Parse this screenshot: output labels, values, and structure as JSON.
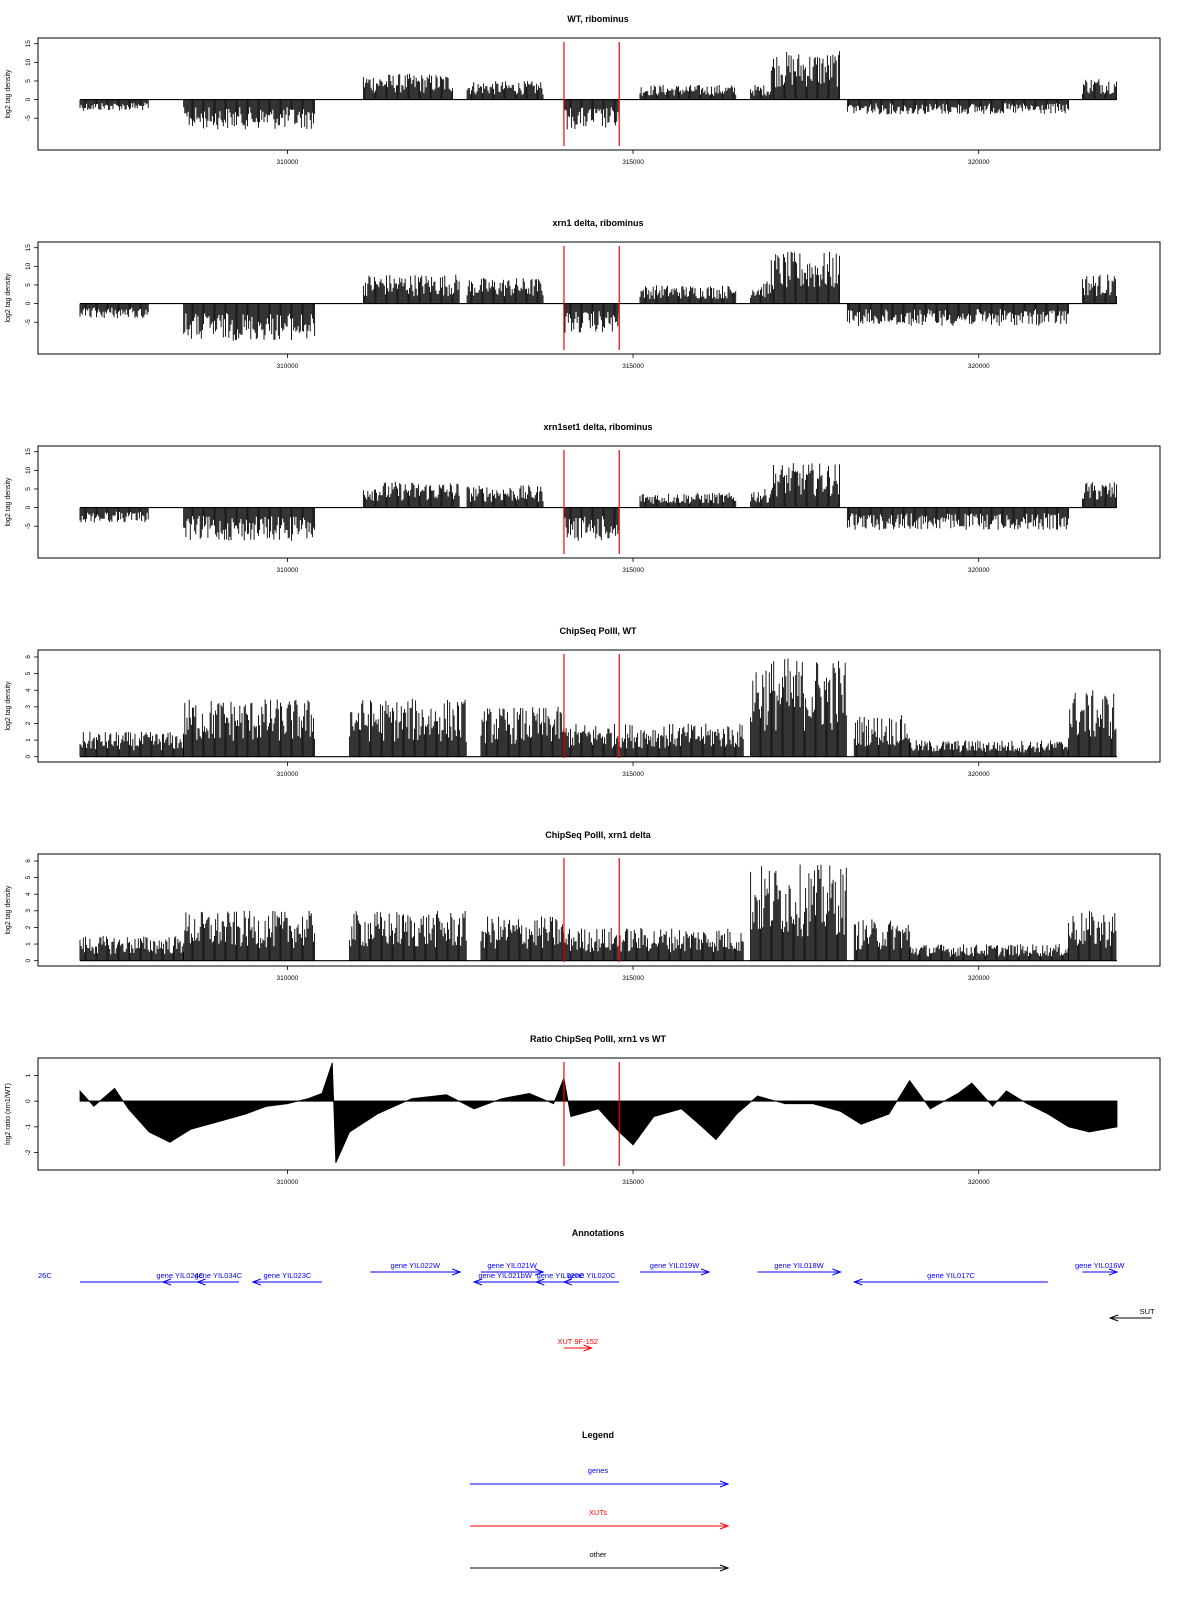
{
  "colors": {
    "genes": "#0000ff",
    "xuts": "#ff0000",
    "other": "#000000",
    "marker": "#ff0000",
    "bars": "#000000"
  },
  "chart_data": [
    {
      "type": "bar",
      "title": "WT, ribominus",
      "ylabel": "log2 tag density",
      "xlim": [
        307000,
        322000
      ],
      "ylim": [
        -13,
        16
      ],
      "xticks": [
        310000,
        315000,
        320000
      ],
      "yticks": [
        -5,
        0,
        5,
        10,
        15
      ],
      "markers_x": [
        314000,
        314800
      ],
      "segments": [
        {
          "from": 307000,
          "to": 308000,
          "amp": 3,
          "sign": -1
        },
        {
          "from": 308500,
          "to": 310400,
          "amp": 8,
          "sign": -1
        },
        {
          "from": 311100,
          "to": 312400,
          "amp": 7,
          "sign": 1
        },
        {
          "from": 312600,
          "to": 313700,
          "amp": 5,
          "sign": 1
        },
        {
          "from": 314000,
          "to": 314800,
          "amp": 8,
          "sign": -1
        },
        {
          "from": 315100,
          "to": 316500,
          "amp": 4,
          "sign": 1
        },
        {
          "from": 316700,
          "to": 317000,
          "amp": 4,
          "sign": 1
        },
        {
          "from": 317000,
          "to": 318000,
          "amp": 13,
          "sign": 1
        },
        {
          "from": 318100,
          "to": 321300,
          "amp": 4,
          "sign": -1
        },
        {
          "from": 321500,
          "to": 322000,
          "amp": 6,
          "sign": 1
        }
      ]
    },
    {
      "type": "bar",
      "title": "xrn1 delta, ribominus",
      "ylabel": "log2 tag density",
      "xlim": [
        307000,
        322000
      ],
      "ylim": [
        -13,
        16
      ],
      "xticks": [
        310000,
        315000,
        320000
      ],
      "yticks": [
        -5,
        0,
        5,
        10,
        15
      ],
      "markers_x": [
        314000,
        314800
      ],
      "segments": [
        {
          "from": 307000,
          "to": 308000,
          "amp": 4,
          "sign": -1
        },
        {
          "from": 308500,
          "to": 310400,
          "amp": 10,
          "sign": -1
        },
        {
          "from": 311100,
          "to": 312500,
          "amp": 8,
          "sign": 1
        },
        {
          "from": 312600,
          "to": 313700,
          "amp": 7,
          "sign": 1
        },
        {
          "from": 314000,
          "to": 314800,
          "amp": 8,
          "sign": -1
        },
        {
          "from": 315100,
          "to": 316500,
          "amp": 5,
          "sign": 1
        },
        {
          "from": 316700,
          "to": 317000,
          "amp": 6,
          "sign": 1
        },
        {
          "from": 317000,
          "to": 318000,
          "amp": 14,
          "sign": 1
        },
        {
          "from": 318100,
          "to": 321300,
          "amp": 6,
          "sign": -1
        },
        {
          "from": 321500,
          "to": 322000,
          "amp": 8,
          "sign": 1
        }
      ]
    },
    {
      "type": "bar",
      "title": "xrn1set1 delta, ribominus",
      "ylabel": "log2 tag density",
      "xlim": [
        307000,
        322000
      ],
      "ylim": [
        -13,
        16
      ],
      "xticks": [
        310000,
        315000,
        320000
      ],
      "yticks": [
        -5,
        0,
        5,
        10,
        15
      ],
      "markers_x": [
        314000,
        314800
      ],
      "segments": [
        {
          "from": 307000,
          "to": 308000,
          "amp": 4,
          "sign": -1
        },
        {
          "from": 308500,
          "to": 310400,
          "amp": 9,
          "sign": -1
        },
        {
          "from": 311100,
          "to": 312500,
          "amp": 7,
          "sign": 1
        },
        {
          "from": 312600,
          "to": 313700,
          "amp": 6,
          "sign": 1
        },
        {
          "from": 314000,
          "to": 314800,
          "amp": 9,
          "sign": -1
        },
        {
          "from": 315100,
          "to": 316500,
          "amp": 4,
          "sign": 1
        },
        {
          "from": 316700,
          "to": 317000,
          "amp": 5,
          "sign": 1
        },
        {
          "from": 317000,
          "to": 318000,
          "amp": 12,
          "sign": 1
        },
        {
          "from": 318100,
          "to": 321300,
          "amp": 6,
          "sign": -1
        },
        {
          "from": 321500,
          "to": 322000,
          "amp": 7,
          "sign": 1
        }
      ]
    },
    {
      "type": "bar",
      "title": "ChipSeq PolII, WT",
      "ylabel": "log2 tag density",
      "xlim": [
        307000,
        322000
      ],
      "ylim": [
        -0.2,
        6.3
      ],
      "xticks": [
        310000,
        315000,
        320000
      ],
      "yticks": [
        0,
        1,
        2,
        3,
        4,
        5,
        6
      ],
      "markers_x": [
        314000,
        314800
      ],
      "segments": [
        {
          "from": 307000,
          "to": 308500,
          "amp": 1.5,
          "sign": 1
        },
        {
          "from": 308500,
          "to": 310400,
          "amp": 3.5,
          "sign": 1
        },
        {
          "from": 310900,
          "to": 312600,
          "amp": 3.5,
          "sign": 1
        },
        {
          "from": 312800,
          "to": 314000,
          "amp": 3,
          "sign": 1
        },
        {
          "from": 314000,
          "to": 316600,
          "amp": 2,
          "sign": 1
        },
        {
          "from": 316700,
          "to": 318100,
          "amp": 6,
          "sign": 1
        },
        {
          "from": 318200,
          "to": 319000,
          "amp": 2.5,
          "sign": 1
        },
        {
          "from": 319000,
          "to": 321300,
          "amp": 1,
          "sign": 1
        },
        {
          "from": 321300,
          "to": 322000,
          "amp": 4,
          "sign": 1
        }
      ]
    },
    {
      "type": "bar",
      "title": "ChipSeq PolII, xrn1 delta",
      "ylabel": "log2 tag density",
      "xlim": [
        307000,
        322000
      ],
      "ylim": [
        -0.2,
        6.3
      ],
      "xticks": [
        310000,
        315000,
        320000
      ],
      "yticks": [
        0,
        1,
        2,
        3,
        4,
        5,
        6
      ],
      "markers_x": [
        314000,
        314800
      ],
      "segments": [
        {
          "from": 307000,
          "to": 308500,
          "amp": 1.5,
          "sign": 1
        },
        {
          "from": 308500,
          "to": 310400,
          "amp": 3,
          "sign": 1
        },
        {
          "from": 310900,
          "to": 312600,
          "amp": 3,
          "sign": 1
        },
        {
          "from": 312800,
          "to": 314000,
          "amp": 2.7,
          "sign": 1
        },
        {
          "from": 314000,
          "to": 316600,
          "amp": 2,
          "sign": 1
        },
        {
          "from": 316700,
          "to": 318100,
          "amp": 5.8,
          "sign": 1
        },
        {
          "from": 318200,
          "to": 319000,
          "amp": 2.5,
          "sign": 1
        },
        {
          "from": 319000,
          "to": 321300,
          "amp": 1,
          "sign": 1
        },
        {
          "from": 321300,
          "to": 322000,
          "amp": 3,
          "sign": 1
        }
      ]
    },
    {
      "type": "area",
      "title": "Ratio ChipSeq PolII, xrn1 vs WT",
      "ylabel": "log2 ratio (xrn1/WT)",
      "xlim": [
        307000,
        322000
      ],
      "ylim": [
        -2.6,
        1.6
      ],
      "xticks": [
        310000,
        315000,
        320000
      ],
      "yticks": [
        -2,
        -1,
        0,
        1
      ],
      "markers_x": [
        314000,
        314800
      ],
      "profile": [
        [
          307000,
          0.4
        ],
        [
          307200,
          -0.2
        ],
        [
          307500,
          0.5
        ],
        [
          307700,
          -0.3
        ],
        [
          308000,
          -1.2
        ],
        [
          308300,
          -1.6
        ],
        [
          308600,
          -1.1
        ],
        [
          309000,
          -0.8
        ],
        [
          309400,
          -0.5
        ],
        [
          309700,
          -0.2
        ],
        [
          310000,
          -0.1
        ],
        [
          310300,
          0.1
        ],
        [
          310500,
          0.3
        ],
        [
          310650,
          1.5
        ],
        [
          310700,
          -2.4
        ],
        [
          310900,
          -1.2
        ],
        [
          311300,
          -0.5
        ],
        [
          311800,
          0.1
        ],
        [
          312300,
          0.25
        ],
        [
          312700,
          -0.3
        ],
        [
          313100,
          0.1
        ],
        [
          313500,
          0.3
        ],
        [
          313850,
          -0.1
        ],
        [
          314000,
          0.9
        ],
        [
          314100,
          -0.6
        ],
        [
          314500,
          -0.3
        ],
        [
          314800,
          -1.2
        ],
        [
          315000,
          -1.7
        ],
        [
          315300,
          -0.6
        ],
        [
          315700,
          -0.3
        ],
        [
          316000,
          -1.0
        ],
        [
          316200,
          -1.5
        ],
        [
          316500,
          -0.5
        ],
        [
          316800,
          0.2
        ],
        [
          317200,
          -0.1
        ],
        [
          317600,
          -0.1
        ],
        [
          318000,
          -0.4
        ],
        [
          318300,
          -0.9
        ],
        [
          318700,
          -0.5
        ],
        [
          319000,
          0.8
        ],
        [
          319300,
          -0.3
        ],
        [
          319700,
          0.3
        ],
        [
          319900,
          0.7
        ],
        [
          320200,
          -0.2
        ],
        [
          320400,
          0.4
        ],
        [
          320700,
          -0.1
        ],
        [
          321000,
          -0.5
        ],
        [
          321300,
          -1.0
        ],
        [
          321600,
          -1.2
        ],
        [
          322000,
          -1.0
        ]
      ]
    }
  ],
  "annotations": {
    "title": "Annotations",
    "items": [
      {
        "label": "26C",
        "color": "genes",
        "from": 307000,
        "to": 308600,
        "dir": "none",
        "row": 2
      },
      {
        "label": "gene YIL024C",
        "color": "genes",
        "from": 308200,
        "to": 308700,
        "dir": "left",
        "row": 2
      },
      {
        "label": "gene YIL034C",
        "color": "genes",
        "from": 308700,
        "to": 309300,
        "dir": "left",
        "row": 2
      },
      {
        "label": "gene YIL023C",
        "color": "genes",
        "from": 309500,
        "to": 310500,
        "dir": "left",
        "row": 2
      },
      {
        "label": "gene YIL022W",
        "color": "genes",
        "from": 311200,
        "to": 312500,
        "dir": "right",
        "row": 1
      },
      {
        "label": "gene YIL021W",
        "color": "genes",
        "from": 312800,
        "to": 313700,
        "dir": "right",
        "row": 1
      },
      {
        "label": "gene YIL021bW",
        "color": "genes",
        "from": 312700,
        "to": 313600,
        "dir": "left",
        "row": 2
      },
      {
        "label": "gene YIL020C",
        "color": "genes",
        "from": 313600,
        "to": 314300,
        "dir": "left",
        "row": 2
      },
      {
        "label": "gene YIL020C",
        "color": "genes",
        "from": 314000,
        "to": 314800,
        "dir": "left",
        "row": 2
      },
      {
        "label": "gene YIL019W",
        "color": "genes",
        "from": 315100,
        "to": 316100,
        "dir": "right",
        "row": 1
      },
      {
        "label": "gene YIL018W",
        "color": "genes",
        "from": 316800,
        "to": 318000,
        "dir": "right",
        "row": 1
      },
      {
        "label": "gene YIL017C",
        "color": "genes",
        "from": 318200,
        "to": 321000,
        "dir": "left",
        "row": 2
      },
      {
        "label": "gene YIL016W",
        "color": "genes",
        "from": 321500,
        "to": 322000,
        "dir": "right",
        "row": 1
      },
      {
        "label": "SUT",
        "color": "other",
        "from": 321900,
        "to": 322500,
        "dir": "left",
        "row": 3
      },
      {
        "label": "XUT 9F-152",
        "color": "xuts",
        "from": 314000,
        "to": 314400,
        "dir": "right",
        "row": 4
      }
    ]
  },
  "legend": {
    "title": "Legend",
    "items": [
      {
        "label": "genes",
        "color": "genes"
      },
      {
        "label": "XUTs",
        "color": "xuts"
      },
      {
        "label": "other",
        "color": "other"
      }
    ]
  }
}
